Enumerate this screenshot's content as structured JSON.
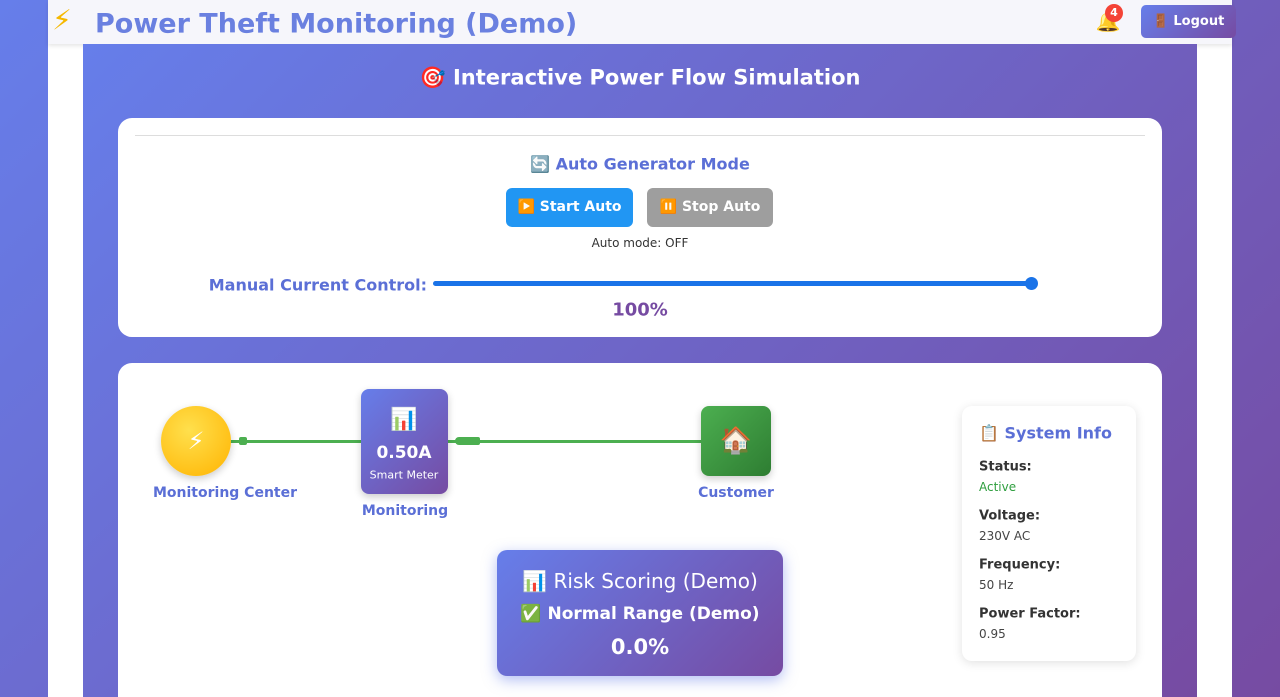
{
  "header": {
    "icon": "⚡",
    "title": "Power Theft Monitoring (Demo)",
    "notification_count": "4",
    "logout": "🚪 Logout"
  },
  "simulation": {
    "title": "🎯 Interactive Power Flow Simulation",
    "auto_mode": {
      "title": "🔄 Auto Generator Mode",
      "buttons": [
        "▶️ Start Auto",
        "⏸️ Stop Auto"
      ],
      "status": "Auto mode: OFF"
    },
    "manual_control": {
      "label": "Manual Current Control:",
      "value_label": "100%"
    },
    "nodes": [
      {
        "icon": "⚡",
        "label": "Monitoring Center"
      },
      {
        "icon": "📊",
        "reading": "0.50A",
        "sublabel": "Smart Meter",
        "label": "Monitoring"
      },
      {
        "icon": "🏠",
        "label": "Customer"
      }
    ],
    "risk": {
      "title": "📊 Risk Scoring (Demo)",
      "status": "✅ Normal Range (Demo)",
      "score": "0.0%"
    },
    "system_info": {
      "title": "📋 System Info",
      "items": [
        {
          "label": "Status:",
          "value": "Active"
        },
        {
          "label": "Voltage:",
          "value": "230V AC"
        },
        {
          "label": "Frequency:",
          "value": "50 Hz"
        },
        {
          "label": "Power Factor:",
          "value": "0.95"
        }
      ]
    }
  }
}
